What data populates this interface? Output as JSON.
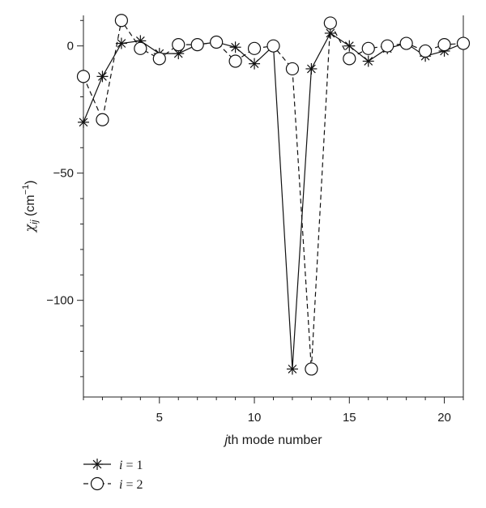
{
  "chart_data": {
    "type": "line",
    "title": "",
    "xlabel": {
      "italic": "j",
      "rest": "th mode number"
    },
    "ylabel": {
      "symbol": "χ",
      "subscript": "ij",
      "unit_open": " (cm",
      "unit_sup": "−1",
      "unit_close": ")"
    },
    "xlim": [
      1,
      21
    ],
    "ylim": [
      -138,
      12
    ],
    "xticks": [
      5,
      10,
      15,
      20
    ],
    "xtick_labels": [
      "5",
      "10",
      "15",
      "20"
    ],
    "yticks": [
      0,
      -50,
      -100
    ],
    "ytick_labels": [
      "0",
      "−50",
      "−100"
    ],
    "x": [
      1,
      2,
      3,
      4,
      5,
      6,
      7,
      8,
      9,
      10,
      11,
      12,
      13,
      14,
      15,
      16,
      17,
      18,
      19,
      20,
      21
    ],
    "series": [
      {
        "name": "i = 1",
        "legend_var": "i",
        "legend_eq": " = 1",
        "marker": "asterisk",
        "linestyle": "solid",
        "values": [
          -30,
          -12,
          1,
          2,
          -3,
          -3,
          0.5,
          1.5,
          -0.5,
          -7,
          0,
          -127,
          -9,
          5,
          0,
          -6,
          -1,
          1,
          -4,
          -2,
          1
        ]
      },
      {
        "name": "i = 2",
        "legend_var": "i",
        "legend_eq": " = 2",
        "marker": "circle",
        "linestyle": "dashed",
        "values": [
          -12,
          -29,
          10,
          -1,
          -5,
          0.5,
          0.5,
          1.5,
          -6,
          -1,
          0,
          -9,
          -127,
          9,
          -5,
          -1,
          0,
          1,
          -2,
          0.5,
          1
        ]
      }
    ],
    "grid": false,
    "legend_position": "bottom-left"
  }
}
